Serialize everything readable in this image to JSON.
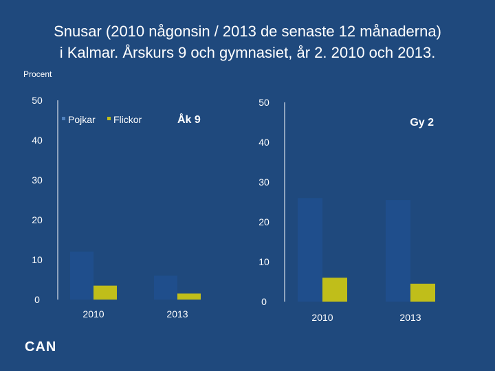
{
  "title_line1": "Snusar (2010 någonsin / 2013 de senaste 12 månaderna)",
  "title_line2": "i Kalmar. Årskurs 9 och gymnasiet, år 2. 2010 och 2013.",
  "unit_label": "Procent",
  "logo_text": "CAN",
  "colors": {
    "background": "#1f497d",
    "pojkar": "#1f4e8c",
    "flickor": "#c0be1a",
    "text": "#ffffff"
  },
  "chart_data": [
    {
      "type": "bar",
      "title": "Åk 9",
      "categories": [
        "2010",
        "2013"
      ],
      "series": [
        {
          "name": "Pojkar",
          "values": [
            12,
            6
          ]
        },
        {
          "name": "Flickor",
          "values": [
            3.5,
            1.5
          ]
        }
      ],
      "ylim": [
        0,
        50
      ],
      "yticks": [
        "0",
        "10",
        "20",
        "30",
        "40",
        "50"
      ],
      "legend": [
        "Pojkar",
        "Flickor"
      ]
    },
    {
      "type": "bar",
      "title": "Gy 2",
      "categories": [
        "2010",
        "2013"
      ],
      "series": [
        {
          "name": "Pojkar",
          "values": [
            26,
            25.5
          ]
        },
        {
          "name": "Flickor",
          "values": [
            6,
            4.5
          ]
        }
      ],
      "ylim": [
        0,
        50
      ],
      "yticks": [
        "0",
        "10",
        "20",
        "30",
        "40",
        "50"
      ]
    }
  ]
}
